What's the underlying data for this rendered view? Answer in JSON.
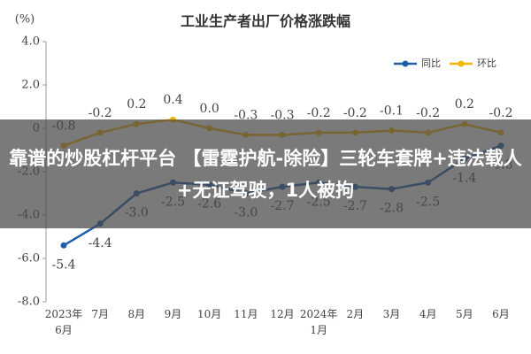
{
  "chart_data": {
    "type": "line",
    "title": "工业生产者出厂价格涨跌幅",
    "y_unit": "(%)",
    "categories": [
      "2023年\n6月",
      "7月",
      "8月",
      "9月",
      "10月",
      "11月",
      "12月",
      "2024年\n1月",
      "2月",
      "3月",
      "4月",
      "5月",
      "6月"
    ],
    "series": [
      {
        "name": "同比",
        "color": "#1f5fa8",
        "values": [
          -5.4,
          -4.4,
          -3.0,
          -2.5,
          -2.6,
          -3.0,
          -2.7,
          -2.5,
          -2.7,
          -2.8,
          -2.5,
          -1.4,
          -0.8
        ],
        "value_labels": [
          "-5.4",
          "-4.4",
          "-3.0",
          "-2.5",
          "-2.6",
          "-3.0",
          "-2.7",
          "-2.5",
          "-2.7",
          "-2.8",
          "-2.5",
          "-1.4",
          "-0.8"
        ]
      },
      {
        "name": "环比",
        "color": "#f2b705",
        "values": [
          -0.8,
          -0.2,
          0.2,
          0.4,
          0.0,
          -0.3,
          -0.3,
          -0.2,
          -0.2,
          -0.1,
          -0.2,
          0.2,
          -0.2
        ],
        "value_labels": [
          "-0.8",
          "-0.2",
          "0.2",
          "0.4",
          "0.0",
          "-0.3",
          "-0.3",
          "-0.2",
          "-0.2",
          "-0.1",
          "-0.2",
          "0.2",
          "-0.2"
        ]
      }
    ],
    "ylim": [
      -8,
      4
    ],
    "yticks": [
      {
        "value": 4,
        "label": "4.0"
      },
      {
        "value": 2,
        "label": "2.0"
      },
      0,
      {
        "value": -2,
        "label": "-2.0"
      },
      {
        "value": -4,
        "label": "-4.0"
      },
      {
        "value": -6,
        "label": "-6.0"
      },
      {
        "value": -8,
        "label": "-8.0"
      }
    ],
    "legend": "top-right",
    "overlay_text": "靠谱的炒股杠杆平台 【雷霆护航-除险】三轮车套牌+违法载人+无证驾驶，1人被拘"
  }
}
